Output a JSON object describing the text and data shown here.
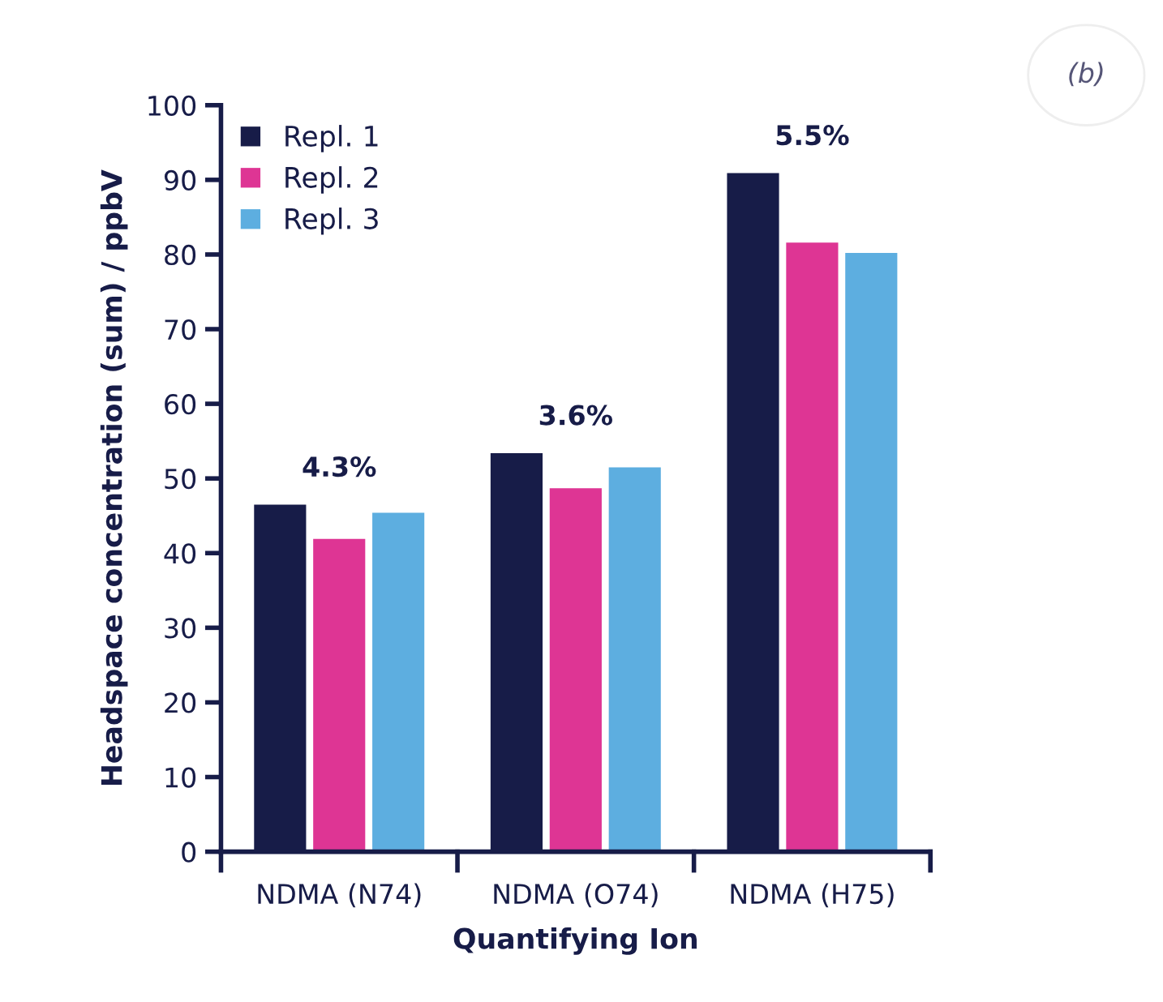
{
  "chart_data": {
    "type": "bar",
    "xlabel": "Quantifying Ion",
    "ylabel": "Headspace concentration (sum) / ppbV",
    "categories": [
      "NDMA (N74)",
      "NDMA (O74)",
      "NDMA (H75)"
    ],
    "series": [
      {
        "name": "Repl. 1",
        "color": "#171c48",
        "values": [
          46.5,
          53.4,
          90.9
        ]
      },
      {
        "name": "Repl. 2",
        "color": "#de3594",
        "values": [
          41.9,
          48.7,
          81.6
        ]
      },
      {
        "name": "Repl. 3",
        "color": "#5daee0",
        "values": [
          45.4,
          51.5,
          80.2
        ]
      }
    ],
    "annotations": [
      "4.3%",
      "3.6%",
      "5.5%",
      "(b)"
    ],
    "ylim": [
      0,
      100
    ],
    "yticks": [
      0,
      10,
      20,
      30,
      40,
      50,
      60,
      70,
      80,
      90,
      100
    ],
    "grid": false,
    "legend": "top left"
  }
}
